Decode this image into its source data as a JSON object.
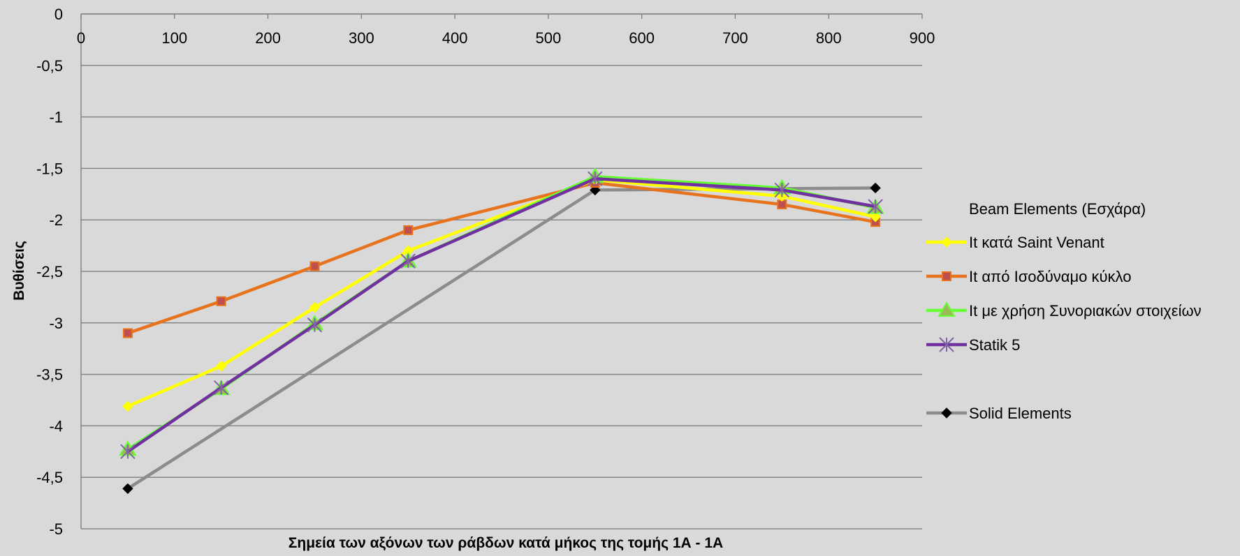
{
  "chart_data": {
    "type": "line",
    "title": "",
    "xlabel": "Σημεία των αξόνων των ράβδων κατά μήκος της τομής 1Α - 1Α",
    "ylabel": "Βυθίσεις",
    "xlim": [
      0,
      900
    ],
    "ylim": [
      -5,
      0
    ],
    "x_ticks": [
      "0",
      "100",
      "200",
      "300",
      "400",
      "500",
      "600",
      "700",
      "800",
      "900"
    ],
    "y_ticks": [
      "0",
      "-0,5",
      "-1",
      "-1,5",
      "-2",
      "-2,5",
      "-3",
      "-3,5",
      "-4",
      "-4,5",
      "-5"
    ],
    "x_axis_at": 0,
    "grid": "horizontal",
    "legend_position": "right",
    "legend_group_title": "Beam Elements (Εσχάρα)",
    "series": [
      {
        "name": "It κατά Saint Venant",
        "color": "#ffff00",
        "marker": "diamond",
        "marker_fill": "#ffff00",
        "marker_stroke": "#ffff00",
        "x": [
          50,
          150,
          250,
          350,
          550,
          750,
          850
        ],
        "y": [
          -3.81,
          -3.42,
          -2.85,
          -2.3,
          -1.61,
          -1.77,
          -1.97
        ]
      },
      {
        "name": "It από Ισοδύναμο κύκλο",
        "color": "#e8731e",
        "marker": "square",
        "marker_fill": "#c0504d",
        "marker_stroke": "#e8731e",
        "x": [
          50,
          150,
          250,
          350,
          550,
          750,
          850
        ],
        "y": [
          -3.1,
          -2.79,
          -2.45,
          -2.1,
          -1.64,
          -1.85,
          -2.02
        ]
      },
      {
        "name": "It με χρήση Συνοριακών στοιχείων",
        "color": "#66ff33",
        "marker": "triangle",
        "marker_fill": "#9bbb59",
        "marker_stroke": "#66ff33",
        "x": [
          50,
          150,
          250,
          350,
          550,
          750,
          850
        ],
        "y": [
          -4.23,
          -3.64,
          -3.01,
          -2.4,
          -1.58,
          -1.69,
          -1.88
        ]
      },
      {
        "name": "Statik 5",
        "color": "#7030a0",
        "marker": "star",
        "marker_fill": "none",
        "marker_stroke": "#8064a2",
        "x": [
          50,
          150,
          250,
          350,
          550,
          750,
          850
        ],
        "y": [
          -4.25,
          -3.63,
          -3.02,
          -2.4,
          -1.6,
          -1.71,
          -1.87
        ]
      },
      {
        "name": "Solid Elements",
        "color": "#8c8c8c",
        "marker": "diamond",
        "marker_fill": "#000000",
        "marker_stroke": "#000000",
        "legend_gap_before": true,
        "x": [
          50,
          550,
          850
        ],
        "y": [
          -4.61,
          -1.71,
          -1.69
        ]
      }
    ]
  }
}
